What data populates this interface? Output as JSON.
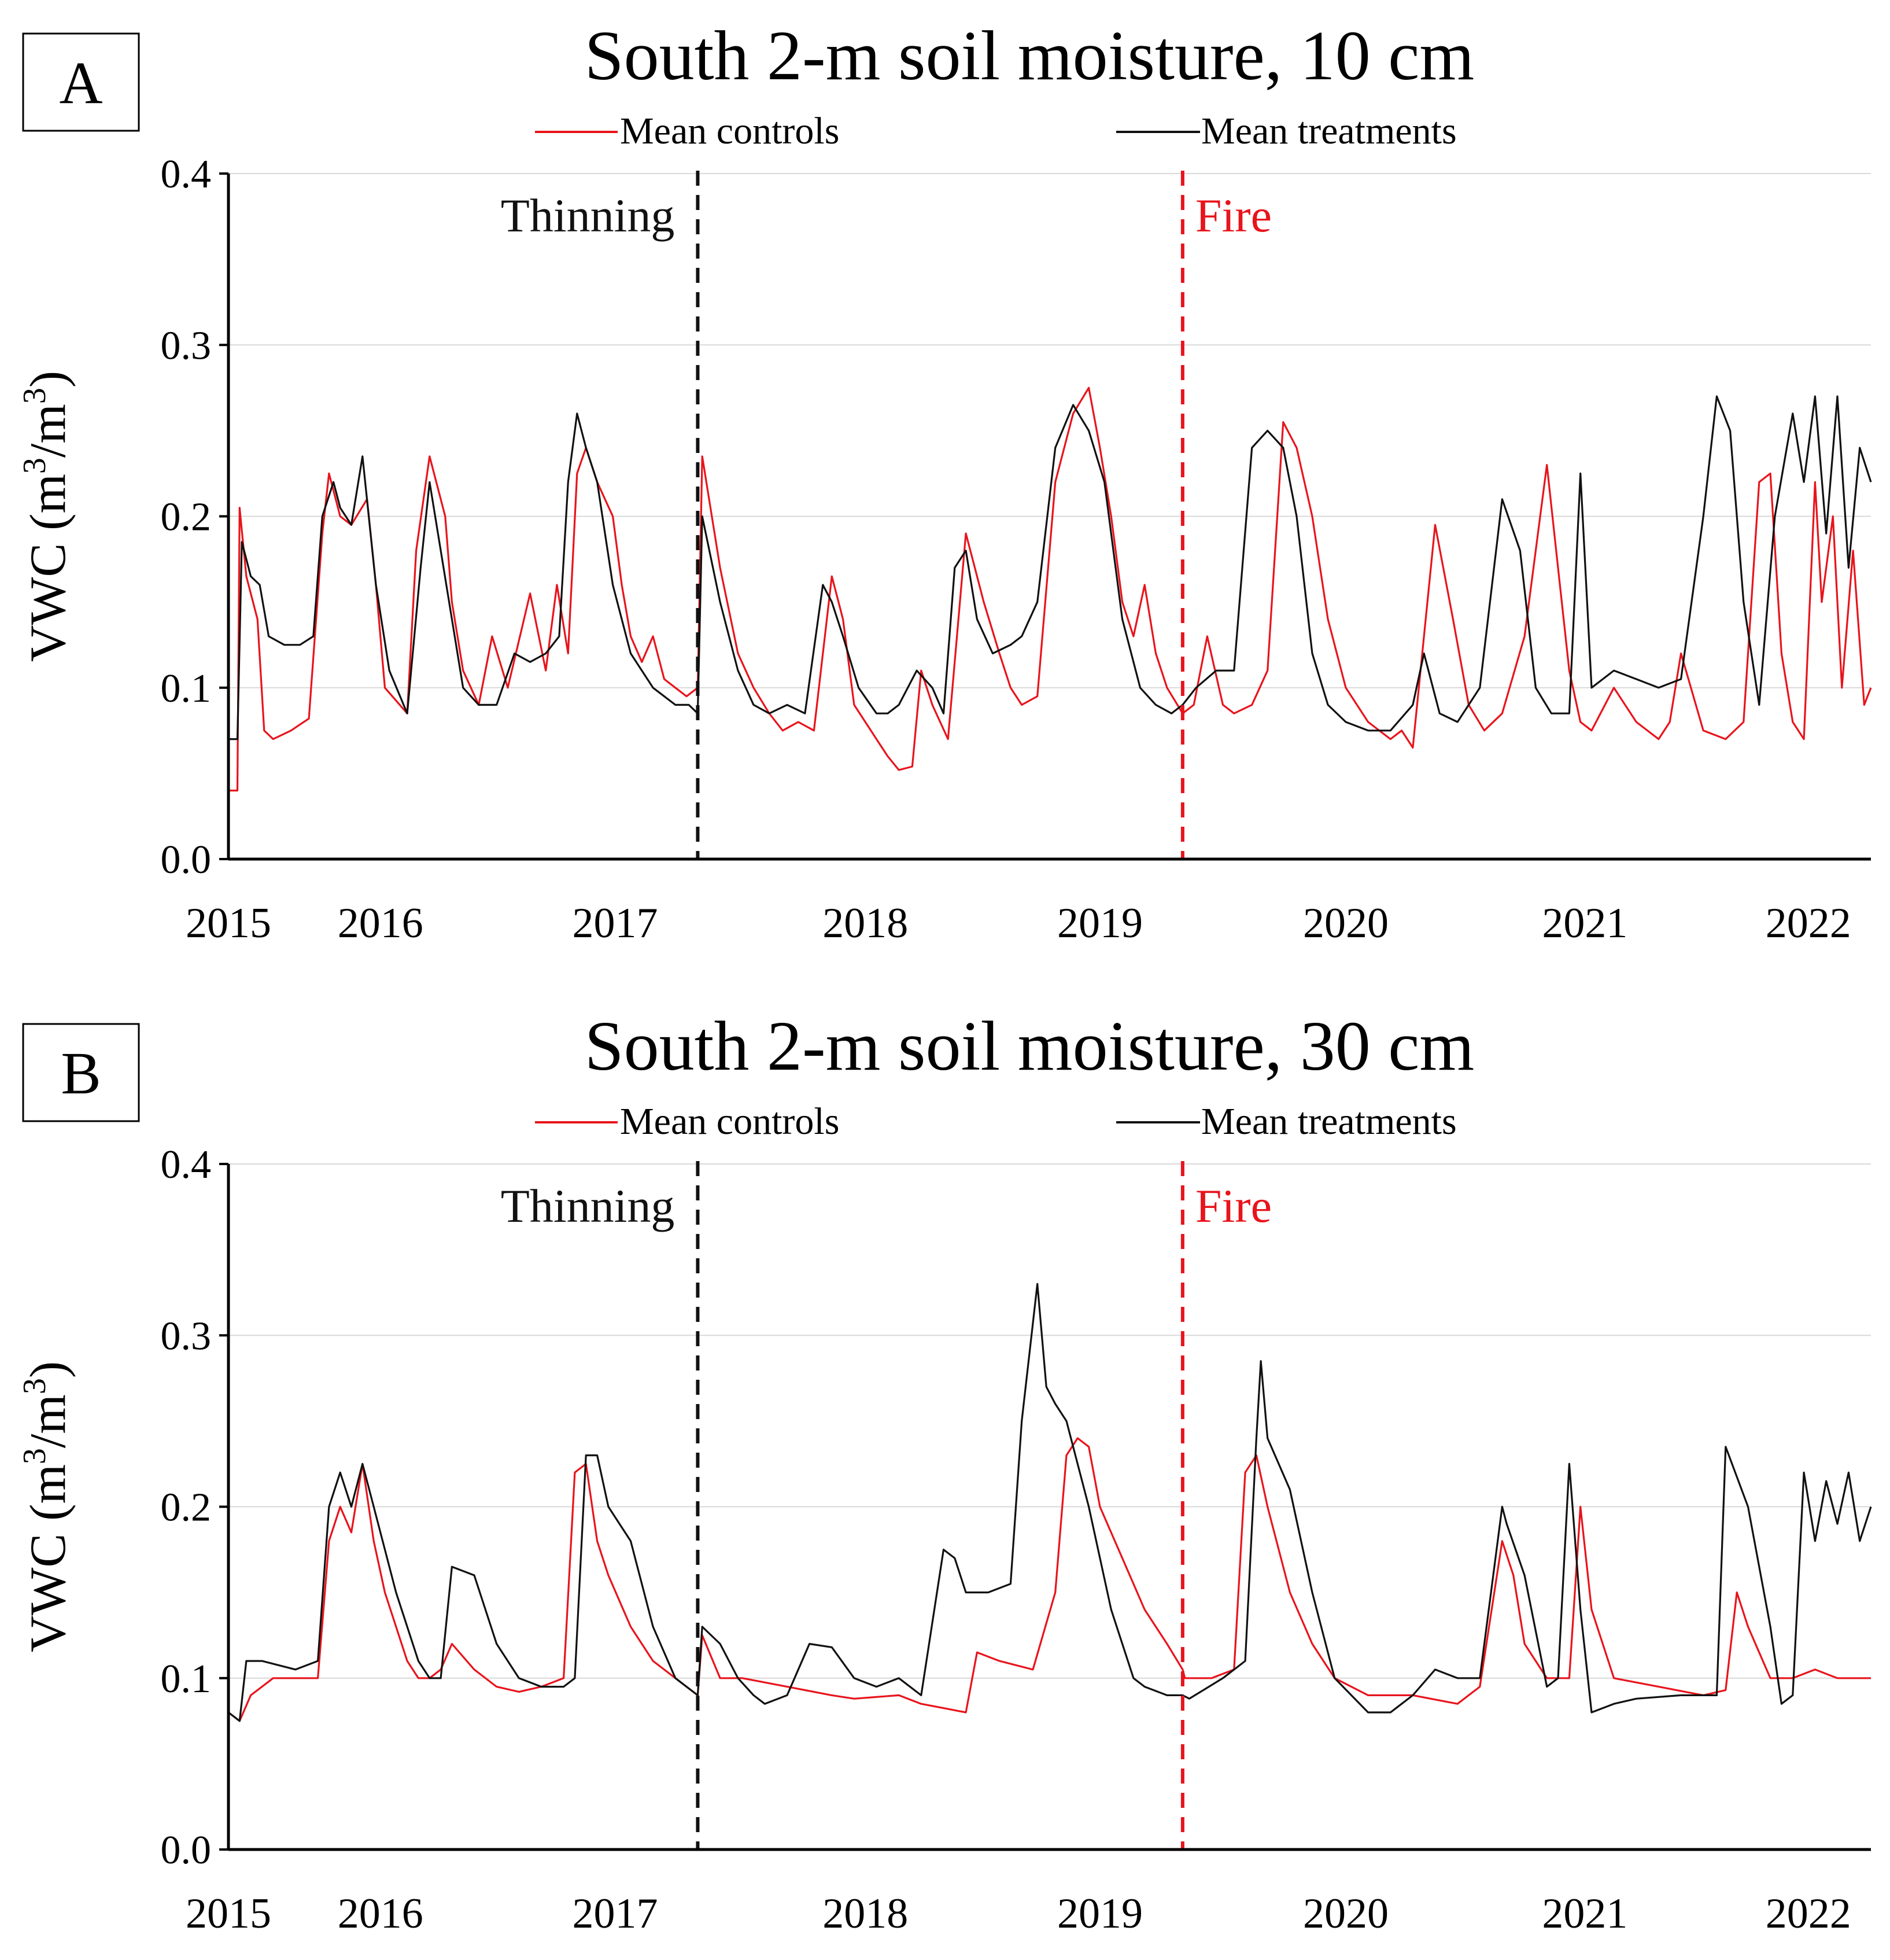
{
  "colors": {
    "controls": "#e8141c",
    "treatments": "#111111",
    "thinning": "#111111",
    "fire": "#e8141c",
    "grid": "#d9d9d9",
    "axis": "#000000"
  },
  "chart_data": [
    {
      "panel_label": "A",
      "type": "line",
      "title": "South 2-m soil moisture, 10 cm",
      "xlabel": "",
      "ylabel": "VWC (m³/m³)",
      "ylabel_main": "VWC (m",
      "ylabel_exp1": "3",
      "ylabel_mid": "/m",
      "ylabel_exp2": "3",
      "ylabel_end": ")",
      "xlim": [
        2015.0,
        2022.35
      ],
      "ylim": [
        0.0,
        0.4
      ],
      "yticks": [
        0.0,
        0.1,
        0.2,
        0.3,
        0.4
      ],
      "ytick_labels": [
        "0.0",
        "0.1",
        "0.2",
        "0.3",
        "0.4"
      ],
      "xtick_labels": [
        "2015",
        "2016",
        "2017",
        "2018",
        "2019",
        "2020",
        "2021",
        "2022"
      ],
      "xtick_values": [
        2015.0,
        2015.68,
        2016.73,
        2017.85,
        2018.9,
        2020.0,
        2021.07,
        2022.07
      ],
      "grid": true,
      "legend_position": "top",
      "events": [
        {
          "label": "Thinning",
          "x": 2017.1,
          "color": "#111111"
        },
        {
          "label": "Fire",
          "x": 2019.27,
          "color": "#e8141c"
        }
      ],
      "series": [
        {
          "name": "Mean controls",
          "color": "#e8141c",
          "x": [
            2015.0,
            2015.04,
            2015.05,
            2015.08,
            2015.13,
            2015.16,
            2015.2,
            2015.28,
            2015.36,
            2015.42,
            2015.45,
            2015.5,
            2015.55,
            2015.62,
            2015.66,
            2015.7,
            2015.8,
            2015.84,
            2015.9,
            2015.97,
            2016.0,
            2016.05,
            2016.12,
            2016.18,
            2016.25,
            2016.35,
            2016.42,
            2016.47,
            2016.52,
            2016.56,
            2016.6,
            2016.65,
            2016.72,
            2016.76,
            2016.8,
            2016.85,
            2016.9,
            2016.95,
            2017.0,
            2017.05,
            2017.1,
            2017.12,
            2017.2,
            2017.28,
            2017.35,
            2017.42,
            2017.48,
            2017.55,
            2017.62,
            2017.7,
            2017.75,
            2017.8,
            2017.85,
            2017.9,
            2017.95,
            2018.0,
            2018.06,
            2018.1,
            2018.15,
            2018.22,
            2018.3,
            2018.38,
            2018.45,
            2018.5,
            2018.55,
            2018.62,
            2018.7,
            2018.78,
            2018.85,
            2018.9,
            2018.95,
            2019.0,
            2019.05,
            2019.1,
            2019.15,
            2019.2,
            2019.27,
            2019.32,
            2019.38,
            2019.45,
            2019.5,
            2019.58,
            2019.65,
            2019.72,
            2019.78,
            2019.85,
            2019.92,
            2020.0,
            2020.1,
            2020.2,
            2020.25,
            2020.3,
            2020.4,
            2020.48,
            2020.55,
            2020.62,
            2020.7,
            2020.8,
            2020.9,
            2020.95,
            2021.0,
            2021.05,
            2021.1,
            2021.2,
            2021.3,
            2021.4,
            2021.45,
            2021.5,
            2021.6,
            2021.7,
            2021.78,
            2021.85,
            2021.9,
            2021.95,
            2022.0,
            2022.05,
            2022.1,
            2022.13,
            2022.18,
            2022.22,
            2022.27,
            2022.32,
            2022.35
          ],
          "values": [
            0.04,
            0.04,
            0.205,
            0.165,
            0.14,
            0.075,
            0.07,
            0.075,
            0.082,
            0.19,
            0.225,
            0.2,
            0.195,
            0.21,
            0.16,
            0.1,
            0.085,
            0.18,
            0.235,
            0.2,
            0.15,
            0.11,
            0.09,
            0.13,
            0.1,
            0.155,
            0.11,
            0.16,
            0.12,
            0.225,
            0.24,
            0.22,
            0.2,
            0.16,
            0.13,
            0.115,
            0.13,
            0.105,
            0.1,
            0.095,
            0.1,
            0.235,
            0.17,
            0.12,
            0.1,
            0.085,
            0.075,
            0.08,
            0.075,
            0.165,
            0.14,
            0.09,
            0.08,
            0.07,
            0.06,
            0.052,
            0.054,
            0.11,
            0.09,
            0.07,
            0.19,
            0.15,
            0.12,
            0.1,
            0.09,
            0.095,
            0.22,
            0.26,
            0.275,
            0.24,
            0.2,
            0.15,
            0.13,
            0.16,
            0.12,
            0.1,
            0.085,
            0.09,
            0.13,
            0.09,
            0.085,
            0.09,
            0.11,
            0.255,
            0.24,
            0.2,
            0.14,
            0.1,
            0.08,
            0.07,
            0.075,
            0.065,
            0.195,
            0.14,
            0.09,
            0.075,
            0.085,
            0.13,
            0.23,
            0.17,
            0.11,
            0.08,
            0.075,
            0.1,
            0.08,
            0.07,
            0.08,
            0.12,
            0.075,
            0.07,
            0.08,
            0.22,
            0.225,
            0.12,
            0.08,
            0.07,
            0.22,
            0.15,
            0.2,
            0.1,
            0.18,
            0.09,
            0.1
          ]
        },
        {
          "name": "Mean treatments",
          "color": "#111111",
          "x": [
            2015.0,
            2015.04,
            2015.06,
            2015.1,
            2015.14,
            2015.18,
            2015.25,
            2015.32,
            2015.38,
            2015.42,
            2015.47,
            2015.5,
            2015.55,
            2015.6,
            2015.66,
            2015.72,
            2015.8,
            2015.86,
            2015.9,
            2015.95,
            2016.0,
            2016.05,
            2016.12,
            2016.2,
            2016.28,
            2016.35,
            2016.42,
            2016.48,
            2016.52,
            2016.56,
            2016.6,
            2016.65,
            2016.72,
            2016.8,
            2016.9,
            2017.0,
            2017.06,
            2017.1,
            2017.12,
            2017.2,
            2017.28,
            2017.35,
            2017.42,
            2017.5,
            2017.58,
            2017.66,
            2017.7,
            2017.75,
            2017.82,
            2017.9,
            2017.95,
            2018.0,
            2018.08,
            2018.15,
            2018.2,
            2018.25,
            2018.3,
            2018.35,
            2018.42,
            2018.5,
            2018.55,
            2018.62,
            2018.7,
            2018.78,
            2018.85,
            2018.92,
            2019.0,
            2019.08,
            2019.15,
            2019.22,
            2019.27,
            2019.33,
            2019.42,
            2019.5,
            2019.58,
            2019.65,
            2019.72,
            2019.78,
            2019.85,
            2019.92,
            2020.0,
            2020.1,
            2020.2,
            2020.3,
            2020.35,
            2020.42,
            2020.5,
            2020.6,
            2020.7,
            2020.78,
            2020.85,
            2020.92,
            2021.0,
            2021.05,
            2021.1,
            2021.2,
            2021.3,
            2021.4,
            2021.5,
            2021.6,
            2021.66,
            2021.72,
            2021.78,
            2021.85,
            2021.92,
            2022.0,
            2022.05,
            2022.1,
            2022.15,
            2022.2,
            2022.25,
            2022.3,
            2022.35
          ],
          "values": [
            0.07,
            0.07,
            0.185,
            0.165,
            0.16,
            0.13,
            0.125,
            0.125,
            0.13,
            0.2,
            0.22,
            0.205,
            0.195,
            0.235,
            0.16,
            0.11,
            0.085,
            0.17,
            0.22,
            0.18,
            0.14,
            0.1,
            0.09,
            0.09,
            0.12,
            0.115,
            0.12,
            0.13,
            0.22,
            0.26,
            0.24,
            0.22,
            0.16,
            0.12,
            0.1,
            0.09,
            0.09,
            0.085,
            0.2,
            0.15,
            0.11,
            0.09,
            0.085,
            0.09,
            0.085,
            0.16,
            0.15,
            0.13,
            0.1,
            0.085,
            0.085,
            0.09,
            0.11,
            0.1,
            0.085,
            0.17,
            0.18,
            0.14,
            0.12,
            0.125,
            0.13,
            0.15,
            0.24,
            0.265,
            0.25,
            0.22,
            0.14,
            0.1,
            0.09,
            0.085,
            0.09,
            0.1,
            0.11,
            0.11,
            0.24,
            0.25,
            0.24,
            0.2,
            0.12,
            0.09,
            0.08,
            0.075,
            0.075,
            0.09,
            0.12,
            0.085,
            0.08,
            0.1,
            0.21,
            0.18,
            0.1,
            0.085,
            0.085,
            0.225,
            0.1,
            0.11,
            0.105,
            0.1,
            0.105,
            0.2,
            0.27,
            0.25,
            0.15,
            0.09,
            0.2,
            0.26,
            0.22,
            0.27,
            0.19,
            0.27,
            0.17,
            0.24,
            0.22
          ]
        }
      ]
    },
    {
      "panel_label": "B",
      "type": "line",
      "title": "South 2-m soil moisture, 30 cm",
      "xlabel": "",
      "ylabel": "VWC (m³/m³)",
      "ylabel_main": "VWC (m",
      "ylabel_exp1": "3",
      "ylabel_mid": "/m",
      "ylabel_exp2": "3",
      "ylabel_end": ")",
      "xlim": [
        2015.0,
        2022.35
      ],
      "ylim": [
        0.0,
        0.4
      ],
      "yticks": [
        0.0,
        0.1,
        0.2,
        0.3,
        0.4
      ],
      "ytick_labels": [
        "0.0",
        "0.1",
        "0.2",
        "0.3",
        "0.4"
      ],
      "xtick_labels": [
        "2015",
        "2016",
        "2017",
        "2018",
        "2019",
        "2020",
        "2021",
        "2022"
      ],
      "xtick_values": [
        2015.0,
        2015.68,
        2016.73,
        2017.85,
        2018.9,
        2020.0,
        2021.07,
        2022.07
      ],
      "grid": true,
      "legend_position": "top",
      "events": [
        {
          "label": "Thinning",
          "x": 2017.1,
          "color": "#111111"
        },
        {
          "label": "Fire",
          "x": 2019.27,
          "color": "#e8141c"
        }
      ],
      "series": [
        {
          "name": "Mean controls",
          "color": "#e8141c",
          "x": [
            2015.0,
            2015.05,
            2015.1,
            2015.2,
            2015.3,
            2015.4,
            2015.45,
            2015.5,
            2015.55,
            2015.6,
            2015.65,
            2015.7,
            2015.8,
            2015.85,
            2015.9,
            2015.95,
            2016.0,
            2016.1,
            2016.2,
            2016.3,
            2016.4,
            2016.5,
            2016.55,
            2016.6,
            2016.65,
            2016.7,
            2016.8,
            2016.9,
            2017.0,
            2017.1,
            2017.12,
            2017.2,
            2017.3,
            2017.5,
            2017.7,
            2017.8,
            2018.0,
            2018.1,
            2018.3,
            2018.35,
            2018.45,
            2018.6,
            2018.7,
            2018.75,
            2018.8,
            2018.85,
            2018.9,
            2019.0,
            2019.1,
            2019.2,
            2019.27,
            2019.28,
            2019.4,
            2019.5,
            2019.55,
            2019.6,
            2019.65,
            2019.75,
            2019.85,
            2019.95,
            2020.1,
            2020.3,
            2020.5,
            2020.6,
            2020.7,
            2020.75,
            2020.8,
            2020.9,
            2021.0,
            2021.05,
            2021.1,
            2021.2,
            2021.4,
            2021.6,
            2021.7,
            2021.75,
            2021.8,
            2021.9,
            2022.0,
            2022.1,
            2022.2,
            2022.35
          ],
          "values": [
            0.08,
            0.075,
            0.09,
            0.1,
            0.1,
            0.1,
            0.18,
            0.2,
            0.185,
            0.225,
            0.18,
            0.15,
            0.11,
            0.1,
            0.1,
            0.105,
            0.12,
            0.105,
            0.095,
            0.092,
            0.095,
            0.1,
            0.22,
            0.225,
            0.18,
            0.16,
            0.13,
            0.11,
            0.1,
            0.09,
            0.125,
            0.1,
            0.1,
            0.095,
            0.09,
            0.088,
            0.09,
            0.085,
            0.08,
            0.115,
            0.11,
            0.105,
            0.15,
            0.23,
            0.24,
            0.235,
            0.2,
            0.17,
            0.14,
            0.12,
            0.105,
            0.1,
            0.1,
            0.105,
            0.22,
            0.23,
            0.2,
            0.15,
            0.12,
            0.1,
            0.09,
            0.09,
            0.085,
            0.095,
            0.18,
            0.16,
            0.12,
            0.1,
            0.1,
            0.2,
            0.14,
            0.1,
            0.095,
            0.09,
            0.093,
            0.15,
            0.13,
            0.1,
            0.1,
            0.105,
            0.1,
            0.1
          ]
        },
        {
          "name": "Mean treatments",
          "color": "#111111",
          "x": [
            2015.0,
            2015.05,
            2015.08,
            2015.15,
            2015.3,
            2015.4,
            2015.45,
            2015.5,
            2015.55,
            2015.6,
            2015.65,
            2015.75,
            2015.85,
            2015.9,
            2015.95,
            2016.0,
            2016.1,
            2016.2,
            2016.3,
            2016.4,
            2016.5,
            2016.55,
            2016.6,
            2016.65,
            2016.7,
            2016.8,
            2016.9,
            2017.0,
            2017.1,
            2017.12,
            2017.2,
            2017.28,
            2017.35,
            2017.4,
            2017.5,
            2017.6,
            2017.7,
            2017.8,
            2017.9,
            2018.0,
            2018.1,
            2018.2,
            2018.25,
            2018.3,
            2018.4,
            2018.5,
            2018.55,
            2018.62,
            2018.66,
            2018.7,
            2018.75,
            2018.85,
            2018.95,
            2019.05,
            2019.1,
            2019.2,
            2019.27,
            2019.3,
            2019.45,
            2019.55,
            2019.6,
            2019.62,
            2019.65,
            2019.75,
            2019.85,
            2019.95,
            2020.1,
            2020.2,
            2020.3,
            2020.4,
            2020.5,
            2020.6,
            2020.7,
            2020.72,
            2020.8,
            2020.9,
            2020.95,
            2021.0,
            2021.05,
            2021.1,
            2021.2,
            2021.3,
            2021.5,
            2021.66,
            2021.7,
            2021.8,
            2021.9,
            2021.95,
            2022.0,
            2022.05,
            2022.1,
            2022.15,
            2022.2,
            2022.25,
            2022.3,
            2022.35
          ],
          "values": [
            0.08,
            0.075,
            0.11,
            0.11,
            0.105,
            0.11,
            0.2,
            0.22,
            0.2,
            0.225,
            0.2,
            0.15,
            0.11,
            0.1,
            0.1,
            0.165,
            0.16,
            0.12,
            0.1,
            0.095,
            0.095,
            0.1,
            0.23,
            0.23,
            0.2,
            0.18,
            0.13,
            0.1,
            0.09,
            0.13,
            0.12,
            0.1,
            0.09,
            0.085,
            0.09,
            0.12,
            0.118,
            0.1,
            0.095,
            0.1,
            0.09,
            0.175,
            0.17,
            0.15,
            0.15,
            0.155,
            0.25,
            0.33,
            0.27,
            0.26,
            0.25,
            0.2,
            0.14,
            0.1,
            0.095,
            0.09,
            0.09,
            0.088,
            0.1,
            0.11,
            0.24,
            0.285,
            0.24,
            0.21,
            0.15,
            0.1,
            0.08,
            0.08,
            0.09,
            0.105,
            0.1,
            0.1,
            0.2,
            0.19,
            0.16,
            0.095,
            0.1,
            0.225,
            0.14,
            0.08,
            0.085,
            0.088,
            0.09,
            0.09,
            0.235,
            0.2,
            0.13,
            0.085,
            0.09,
            0.22,
            0.18,
            0.215,
            0.19,
            0.22,
            0.18,
            0.2
          ]
        }
      ]
    }
  ]
}
